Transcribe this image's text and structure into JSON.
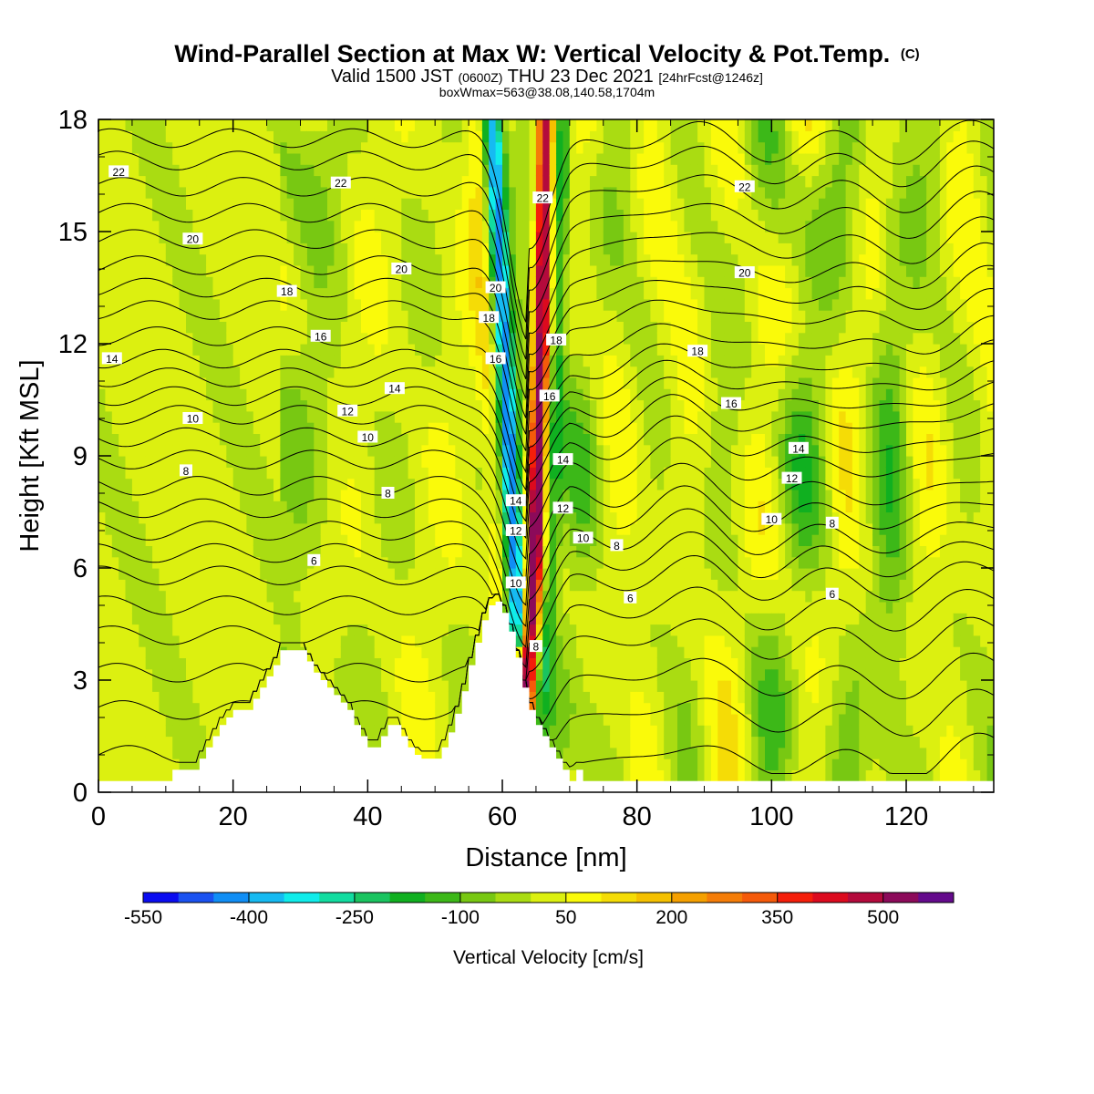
{
  "title": "Wind-Parallel Section at Max W: Vertical Velocity & Pot.Temp.",
  "copyright": "(C)",
  "subtitle_main": "Valid 1500 JST",
  "subtitle_utc": "(0600Z)",
  "subtitle_date": "THU 23 Dec 2021",
  "subtitle_fcst": "[24hrFcst@1246z]",
  "subtitle2": "boxWmax=563@38.08,140.58,1704m",
  "chart_data": {
    "type": "heatmap",
    "xlabel": "Distance [nm]",
    "ylabel": "Height [Kft MSL]",
    "xlim": [
      0,
      133
    ],
    "ylim": [
      0,
      18
    ],
    "x_ticks": [
      "0",
      "20",
      "40",
      "60",
      "80",
      "100",
      "120"
    ],
    "y_ticks": [
      "0",
      "3",
      "6",
      "9",
      "12",
      "15",
      "18"
    ],
    "colorbar": {
      "label": "Vertical Velocity [cm/s]",
      "tick_labels": [
        "-550",
        "-400",
        "-250",
        "-100",
        "50",
        "200",
        "350",
        "500"
      ],
      "bin_edges": [
        -550,
        -500,
        -450,
        -400,
        -350,
        -300,
        -250,
        -200,
        -150,
        -100,
        -50,
        0,
        50,
        100,
        150,
        200,
        250,
        300,
        350,
        400,
        450,
        500,
        550,
        600
      ],
      "colors": [
        "#0a0cf0",
        "#1a52f0",
        "#108ef5",
        "#16baf2",
        "#10ecea",
        "#12dca0",
        "#1ac460",
        "#10b020",
        "#3cb818",
        "#78c812",
        "#aadc12",
        "#dcf010",
        "#fafa0a",
        "#f5dc06",
        "#f5c000",
        "#f5a000",
        "#f57d08",
        "#f55a0a",
        "#f51e0a",
        "#dc0a1e",
        "#b40a3c",
        "#8c0a5a",
        "#640a8c"
      ]
    },
    "terrain_profile": [
      [
        0,
        0.3
      ],
      [
        10,
        0.3
      ],
      [
        11,
        0.6
      ],
      [
        14,
        0.6
      ],
      [
        15,
        0.9
      ],
      [
        16,
        1.2
      ],
      [
        17,
        1.5
      ],
      [
        18,
        1.8
      ],
      [
        19,
        2.0
      ],
      [
        20,
        2.2
      ],
      [
        22,
        2.2
      ],
      [
        23,
        2.5
      ],
      [
        24,
        2.8
      ],
      [
        25,
        3.1
      ],
      [
        26,
        3.4
      ],
      [
        27,
        3.8
      ],
      [
        30,
        3.8
      ],
      [
        31,
        3.5
      ],
      [
        32,
        3.2
      ],
      [
        33,
        3.0
      ],
      [
        34,
        2.8
      ],
      [
        35,
        2.6
      ],
      [
        36,
        2.4
      ],
      [
        37,
        2.2
      ],
      [
        38,
        1.8
      ],
      [
        39,
        1.5
      ],
      [
        40,
        1.2
      ],
      [
        41,
        1.2
      ],
      [
        42,
        1.5
      ],
      [
        43,
        1.8
      ],
      [
        44,
        1.8
      ],
      [
        45,
        1.5
      ],
      [
        46,
        1.2
      ],
      [
        47,
        1.0
      ],
      [
        48,
        0.9
      ],
      [
        49,
        0.9
      ],
      [
        50,
        0.9
      ],
      [
        51,
        1.2
      ],
      [
        52,
        1.6
      ],
      [
        53,
        2.1
      ],
      [
        54,
        2.7
      ],
      [
        55,
        3.4
      ],
      [
        56,
        4.0
      ],
      [
        57,
        4.6
      ],
      [
        58,
        5.0
      ],
      [
        59,
        5.1
      ],
      [
        60,
        4.8
      ],
      [
        61,
        4.3
      ],
      [
        62,
        3.6
      ],
      [
        63,
        2.8
      ],
      [
        64,
        2.2
      ],
      [
        65,
        1.8
      ],
      [
        66,
        1.5
      ],
      [
        67,
        1.2
      ],
      [
        68,
        0.9
      ],
      [
        69,
        0.6
      ],
      [
        70,
        0.3
      ],
      [
        71,
        0.6
      ],
      [
        72,
        0.3
      ],
      [
        133,
        0.3
      ]
    ],
    "wave": {
      "updraft_axis": [
        [
          63.0,
          0.8
        ],
        [
          64.8,
          6.0
        ],
        [
          65.8,
          12.0
        ],
        [
          66.5,
          18.0
        ]
      ],
      "downdraft_axis": [
        [
          62.2,
          4.5
        ],
        [
          61.4,
          8.0
        ],
        [
          60.2,
          12.0
        ],
        [
          58.5,
          18.0
        ]
      ],
      "peak_w": 563
    },
    "isentropes": [
      {
        "label": "6",
        "left_height": 6.4
      },
      {
        "label": "8",
        "left_height": 8.4
      },
      {
        "label": "10",
        "left_height": 10.0
      },
      {
        "label": "12",
        "left_height": 10.9
      },
      {
        "label": "14",
        "left_height": 11.6
      },
      {
        "label": "16",
        "left_height": 12.6
      },
      {
        "label": "18",
        "left_height": 13.6
      },
      {
        "label": "20",
        "left_height": 14.8
      },
      {
        "label": "22",
        "left_height": 16.6
      }
    ],
    "contour_labels": [
      {
        "text": "22",
        "x": 3,
        "y": 16.6
      },
      {
        "text": "22",
        "x": 36,
        "y": 16.3
      },
      {
        "text": "20",
        "x": 14,
        "y": 14.8
      },
      {
        "text": "20",
        "x": 45,
        "y": 14.0
      },
      {
        "text": "18",
        "x": 28,
        "y": 13.4
      },
      {
        "text": "16",
        "x": 33,
        "y": 12.2
      },
      {
        "text": "14",
        "x": 2,
        "y": 11.6
      },
      {
        "text": "14",
        "x": 44,
        "y": 10.8
      },
      {
        "text": "12",
        "x": 37,
        "y": 10.2
      },
      {
        "text": "10",
        "x": 14,
        "y": 10.0
      },
      {
        "text": "10",
        "x": 40,
        "y": 9.5
      },
      {
        "text": "8",
        "x": 13,
        "y": 8.6
      },
      {
        "text": "8",
        "x": 43,
        "y": 8.0
      },
      {
        "text": "6",
        "x": 32,
        "y": 6.2
      },
      {
        "text": "20",
        "x": 59,
        "y": 13.5
      },
      {
        "text": "18",
        "x": 58,
        "y": 12.7
      },
      {
        "text": "16",
        "x": 59,
        "y": 11.6
      },
      {
        "text": "14",
        "x": 62,
        "y": 7.8
      },
      {
        "text": "12",
        "x": 62,
        "y": 7.0
      },
      {
        "text": "10",
        "x": 62,
        "y": 5.6
      },
      {
        "text": "8",
        "x": 65,
        "y": 3.9
      },
      {
        "text": "22",
        "x": 66,
        "y": 15.9
      },
      {
        "text": "18",
        "x": 68,
        "y": 12.1
      },
      {
        "text": "16",
        "x": 67,
        "y": 10.6
      },
      {
        "text": "14",
        "x": 69,
        "y": 8.9
      },
      {
        "text": "12",
        "x": 69,
        "y": 7.6
      },
      {
        "text": "10",
        "x": 72,
        "y": 6.8
      },
      {
        "text": "8",
        "x": 77,
        "y": 6.6
      },
      {
        "text": "6",
        "x": 79,
        "y": 5.2
      },
      {
        "text": "22",
        "x": 96,
        "y": 16.2
      },
      {
        "text": "20",
        "x": 96,
        "y": 13.9
      },
      {
        "text": "18",
        "x": 89,
        "y": 11.8
      },
      {
        "text": "16",
        "x": 94,
        "y": 10.4
      },
      {
        "text": "14",
        "x": 104,
        "y": 9.2
      },
      {
        "text": "12",
        "x": 103,
        "y": 8.4
      },
      {
        "text": "10",
        "x": 100,
        "y": 7.3
      },
      {
        "text": "8",
        "x": 109,
        "y": 7.2
      },
      {
        "text": "6",
        "x": 109,
        "y": 5.3
      }
    ]
  }
}
